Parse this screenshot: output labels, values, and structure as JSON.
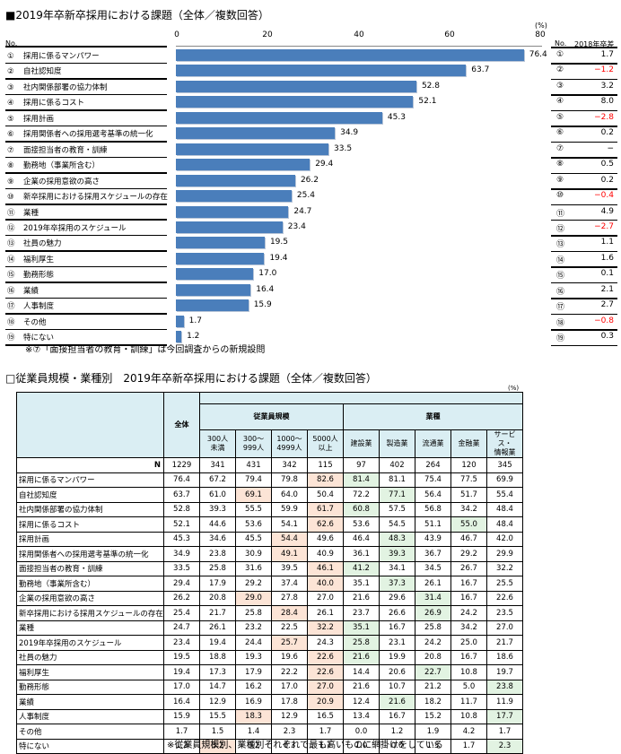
{
  "top_chart": {
    "title": "■2019年卒新卒採用における課題（全体／複数回答）",
    "unit": "(%)",
    "no_header": "No.",
    "diff_header_no": "No.",
    "diff_header": "2018年卒差",
    "note": "※⑦「面接担当者の教育・訓練」は今回調査からの新規設問",
    "ticks": [
      "0",
      "20",
      "40",
      "60",
      "80"
    ]
  },
  "chart_data": [
    {
      "type": "bar",
      "orientation": "horizontal",
      "title": "2019年卒新卒採用における課題（全体／複数回答）",
      "xlabel": "(%)",
      "xlim": [
        0,
        80
      ],
      "xticks": [
        0,
        20,
        40,
        60,
        80
      ],
      "bar_color": "#4a7ebb",
      "categories": [
        "採用に係るマンパワー",
        "自社認知度",
        "社内関係部署の協力体制",
        "採用に係るコスト",
        "採用計画",
        "採用関係者への採用選考基準の統一化",
        "面接担当者の教育・訓練",
        "勤務地（事業所含む）",
        "企業の採用意欲の高さ",
        "新卒採用における採用スケジュールの存在",
        "業種",
        "2019年卒採用のスケジュール",
        "社員の魅力",
        "福利厚生",
        "勤務形態",
        "業績",
        "人事制度",
        "その他",
        "特にない"
      ],
      "values": [
        76.4,
        63.7,
        52.8,
        52.1,
        45.3,
        34.9,
        33.5,
        29.4,
        26.2,
        25.4,
        24.7,
        23.4,
        19.5,
        19.4,
        17.0,
        16.4,
        15.9,
        1.7,
        1.2
      ],
      "diff_vs_2018": [
        "1.7",
        "−1.2",
        "3.2",
        "8.0",
        "−2.8",
        "0.2",
        "−",
        "0.5",
        "0.2",
        "−0.4",
        "4.9",
        "−2.7",
        "1.1",
        "1.6",
        "0.1",
        "2.1",
        "2.7",
        "−0.8",
        "0.3"
      ]
    },
    {
      "type": "table",
      "title": "従業員規模・業種別 2019年卒新卒採用における課題（全体／複数回答）",
      "unit": "(%)",
      "columns": [
        "全体",
        "300人未満",
        "300〜999人",
        "1000〜4999人",
        "5000人以上",
        "建設業",
        "製造業",
        "流通業",
        "金融業",
        "サービス・情報業"
      ],
      "n": [
        "1229",
        "341",
        "431",
        "342",
        "115",
        "97",
        "402",
        "264",
        "120",
        "345"
      ]
    }
  ],
  "items": [
    {
      "no": "①",
      "label": "採用に係るマンパワー",
      "value": "76.4",
      "diff": "1.7",
      "neg": false
    },
    {
      "no": "②",
      "label": "自社認知度",
      "value": "63.7",
      "diff": "−1.2",
      "neg": true
    },
    {
      "no": "③",
      "label": "社内関係部署の協力体制",
      "value": "52.8",
      "diff": "3.2",
      "neg": false
    },
    {
      "no": "④",
      "label": "採用に係るコスト",
      "value": "52.1",
      "diff": "8.0",
      "neg": false
    },
    {
      "no": "⑤",
      "label": "採用計画",
      "value": "45.3",
      "diff": "−2.8",
      "neg": true
    },
    {
      "no": "⑥",
      "label": "採用関係者への採用選考基準の統一化",
      "value": "34.9",
      "diff": "0.2",
      "neg": false
    },
    {
      "no": "⑦",
      "label": "面接担当者の教育・訓練",
      "value": "33.5",
      "diff": "−",
      "neg": false
    },
    {
      "no": "⑧",
      "label": "勤務地（事業所含む）",
      "value": "29.4",
      "diff": "0.5",
      "neg": false
    },
    {
      "no": "⑨",
      "label": "企業の採用意欲の高さ",
      "value": "26.2",
      "diff": "0.2",
      "neg": false
    },
    {
      "no": "⑩",
      "label": "新卒採用における採用スケジュールの存在",
      "value": "25.4",
      "diff": "−0.4",
      "neg": true
    },
    {
      "no": "⑪",
      "label": "業種",
      "value": "24.7",
      "diff": "4.9",
      "neg": false
    },
    {
      "no": "⑫",
      "label": "2019年卒採用のスケジュール",
      "value": "23.4",
      "diff": "−2.7",
      "neg": true
    },
    {
      "no": "⑬",
      "label": "社員の魅力",
      "value": "19.5",
      "diff": "1.1",
      "neg": false
    },
    {
      "no": "⑭",
      "label": "福利厚生",
      "value": "19.4",
      "diff": "1.6",
      "neg": false
    },
    {
      "no": "⑮",
      "label": "勤務形態",
      "value": "17.0",
      "diff": "0.1",
      "neg": false
    },
    {
      "no": "⑯",
      "label": "業績",
      "value": "16.4",
      "diff": "2.1",
      "neg": false
    },
    {
      "no": "⑰",
      "label": "人事制度",
      "value": "15.9",
      "diff": "2.7",
      "neg": false
    },
    {
      "no": "⑱",
      "label": "その他",
      "value": "1.7",
      "diff": "−0.8",
      "neg": true
    },
    {
      "no": "⑲",
      "label": "特にない",
      "value": "1.2",
      "diff": "0.3",
      "neg": false
    }
  ],
  "bottom_table": {
    "title": "□従業員規模・業種別　2019年卒新卒採用における課題（全体／複数回答）",
    "unit": "(%)",
    "header_total": "全体",
    "group_size": "従業員規模",
    "group_industry": "業種",
    "sub_headers": [
      "300人\n未満",
      "300〜\n999人",
      "1000〜\n4999人",
      "5000人\n以上",
      "建設業",
      "製造業",
      "流通業",
      "金融業",
      "サービス・\n情報業"
    ],
    "n_label": "N",
    "n_values": [
      "1229",
      "341",
      "431",
      "342",
      "115",
      "97",
      "402",
      "264",
      "120",
      "345"
    ],
    "rows": [
      {
        "label": "採用に係るマンパワー",
        "values": [
          "76.4",
          "67.2",
          "79.4",
          "79.8",
          "82.6",
          "81.4",
          "81.1",
          "75.4",
          "77.5",
          "69.9"
        ],
        "hl": [
          "",
          "",
          "",
          "",
          "o",
          "g",
          "",
          "",
          "",
          ""
        ]
      },
      {
        "label": "自社認知度",
        "values": [
          "63.7",
          "61.0",
          "69.1",
          "64.0",
          "50.4",
          "72.2",
          "77.1",
          "56.4",
          "51.7",
          "55.4"
        ],
        "hl": [
          "",
          "",
          "o",
          "",
          "",
          "",
          "g",
          "",
          "",
          ""
        ]
      },
      {
        "label": "社内関係部署の協力体制",
        "values": [
          "52.8",
          "39.3",
          "55.5",
          "59.9",
          "61.7",
          "60.8",
          "57.5",
          "56.8",
          "34.2",
          "48.4"
        ],
        "hl": [
          "",
          "",
          "",
          "",
          "o",
          "g",
          "",
          "",
          "",
          ""
        ]
      },
      {
        "label": "採用に係るコスト",
        "values": [
          "52.1",
          "44.6",
          "53.6",
          "54.1",
          "62.6",
          "53.6",
          "54.5",
          "51.1",
          "55.0",
          "48.4"
        ],
        "hl": [
          "",
          "",
          "",
          "",
          "o",
          "",
          "",
          "",
          "g",
          ""
        ]
      },
      {
        "label": "採用計画",
        "values": [
          "45.3",
          "34.6",
          "45.5",
          "54.4",
          "49.6",
          "46.4",
          "48.3",
          "43.9",
          "46.7",
          "42.0"
        ],
        "hl": [
          "",
          "",
          "",
          "o",
          "",
          "",
          "g",
          "",
          "",
          ""
        ]
      },
      {
        "label": "採用関係者への採用選考基準の統一化",
        "values": [
          "34.9",
          "23.8",
          "30.9",
          "49.1",
          "40.9",
          "36.1",
          "39.3",
          "36.7",
          "29.2",
          "29.9"
        ],
        "hl": [
          "",
          "",
          "",
          "o",
          "",
          "",
          "g",
          "",
          "",
          ""
        ]
      },
      {
        "label": "面接担当者の教育・訓練",
        "values": [
          "33.5",
          "25.8",
          "31.6",
          "39.5",
          "46.1",
          "41.2",
          "34.1",
          "34.5",
          "26.7",
          "32.2"
        ],
        "hl": [
          "",
          "",
          "",
          "",
          "o",
          "g",
          "",
          "",
          "",
          ""
        ]
      },
      {
        "label": "勤務地（事業所含む）",
        "values": [
          "29.4",
          "17.9",
          "29.2",
          "37.4",
          "40.0",
          "35.1",
          "37.3",
          "26.1",
          "16.7",
          "25.5"
        ],
        "hl": [
          "",
          "",
          "",
          "",
          "o",
          "",
          "g",
          "",
          "",
          ""
        ]
      },
      {
        "label": "企業の採用意欲の高さ",
        "values": [
          "26.2",
          "20.8",
          "29.0",
          "27.8",
          "27.0",
          "21.6",
          "29.6",
          "31.4",
          "16.7",
          "22.6"
        ],
        "hl": [
          "",
          "",
          "o",
          "",
          "",
          "",
          "",
          "g",
          "",
          ""
        ]
      },
      {
        "label": "新卒採用における採用スケジュールの存在",
        "values": [
          "25.4",
          "21.7",
          "25.8",
          "28.4",
          "26.1",
          "23.7",
          "26.6",
          "26.9",
          "24.2",
          "23.5"
        ],
        "hl": [
          "",
          "",
          "",
          "o",
          "",
          "",
          "",
          "g",
          "",
          ""
        ]
      },
      {
        "label": "業種",
        "values": [
          "24.7",
          "26.1",
          "23.2",
          "22.5",
          "32.2",
          "35.1",
          "16.7",
          "25.8",
          "34.2",
          "27.0"
        ],
        "hl": [
          "",
          "",
          "",
          "",
          "o",
          "g",
          "",
          "",
          "",
          ""
        ]
      },
      {
        "label": "2019年卒採用のスケジュール",
        "values": [
          "23.4",
          "19.4",
          "24.4",
          "25.7",
          "24.3",
          "25.8",
          "23.1",
          "24.2",
          "25.0",
          "21.7"
        ],
        "hl": [
          "",
          "",
          "",
          "o",
          "",
          "g",
          "",
          "",
          "",
          ""
        ]
      },
      {
        "label": "社員の魅力",
        "values": [
          "19.5",
          "18.8",
          "19.3",
          "19.6",
          "22.6",
          "21.6",
          "19.9",
          "20.8",
          "16.7",
          "18.6"
        ],
        "hl": [
          "",
          "",
          "",
          "",
          "o",
          "g",
          "",
          "",
          "",
          ""
        ]
      },
      {
        "label": "福利厚生",
        "values": [
          "19.4",
          "17.3",
          "17.9",
          "22.2",
          "22.6",
          "14.4",
          "20.6",
          "22.7",
          "10.8",
          "19.7"
        ],
        "hl": [
          "",
          "",
          "",
          "",
          "o",
          "",
          "",
          "g",
          "",
          ""
        ]
      },
      {
        "label": "勤務形態",
        "values": [
          "17.0",
          "14.7",
          "16.2",
          "17.0",
          "27.0",
          "21.6",
          "10.7",
          "21.2",
          "5.0",
          "23.8"
        ],
        "hl": [
          "",
          "",
          "",
          "",
          "o",
          "",
          "",
          "",
          "",
          "g"
        ]
      },
      {
        "label": "業績",
        "values": [
          "16.4",
          "12.9",
          "16.9",
          "17.8",
          "20.9",
          "12.4",
          "21.6",
          "18.2",
          "11.7",
          "11.9"
        ],
        "hl": [
          "",
          "",
          "",
          "",
          "o",
          "",
          "g",
          "",
          "",
          ""
        ]
      },
      {
        "label": "人事制度",
        "values": [
          "15.9",
          "15.5",
          "18.3",
          "12.9",
          "16.5",
          "13.4",
          "16.7",
          "15.2",
          "10.8",
          "17.7"
        ],
        "hl": [
          "",
          "",
          "o",
          "",
          "",
          "",
          "",
          "",
          "",
          "g"
        ]
      },
      {
        "label": "その他",
        "values": [
          "1.7",
          "1.5",
          "1.4",
          "2.3",
          "1.7",
          "0.0",
          "1.2",
          "1.9",
          "4.2",
          "1.7"
        ],
        "hl": [
          "",
          "",
          "",
          "",
          "",
          "",
          "",
          "",
          "",
          ""
        ]
      },
      {
        "label": "特にない",
        "values": [
          "1.2",
          "3.2",
          "0.2",
          "0.3",
          "1.7",
          "1.0",
          "0.0",
          "1.5",
          "1.7",
          "2.3"
        ],
        "hl": [
          "",
          "o",
          "",
          "",
          "",
          "",
          "",
          "",
          "",
          "g"
        ]
      }
    ],
    "note": "※従業員規模別、業種別それぞれで最も高いものに網掛けをしている",
    "colors": {
      "header_bg": "#daeef3",
      "highlight_size": "#fce4d6",
      "highlight_industry": "#e2f3e2",
      "bar": "#4a7ebb",
      "negative": "#ff0000"
    }
  }
}
